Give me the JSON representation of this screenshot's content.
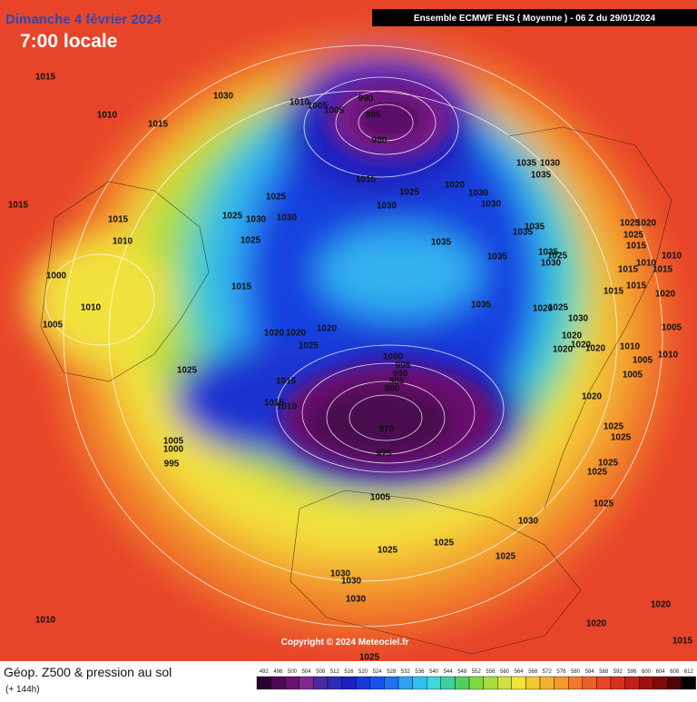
{
  "header": {
    "date": "Dimanche 4 février 2024",
    "time": "7:00 locale",
    "run": "Ensemble ECMWF ENS  ( Moyenne )  -  06 Z du 29/01/2024"
  },
  "footer": {
    "product": "Géop. Z500 & pression au sol",
    "lead": "(+ 144h)",
    "copyright": "Copyright © 2024 Meteociel.fr"
  },
  "scale": {
    "values": [
      492,
      496,
      500,
      504,
      508,
      512,
      516,
      520,
      524,
      528,
      532,
      536,
      540,
      544,
      548,
      552,
      556,
      560,
      564,
      568,
      572,
      576,
      580,
      584,
      588,
      592,
      596,
      600,
      604,
      608,
      612
    ],
    "colors": [
      "#2a0030",
      "#4b0a52",
      "#6a1070",
      "#7e2a8e",
      "#4a2aa0",
      "#2a2ab8",
      "#1e20c0",
      "#1838d8",
      "#1850e8",
      "#2070f0",
      "#30a0f0",
      "#30c0f0",
      "#3cd8d8",
      "#3cd0a0",
      "#50d060",
      "#80d840",
      "#a8dc3c",
      "#d0e040",
      "#f2e23c",
      "#f4c830",
      "#f4b030",
      "#f49828",
      "#f07a2a",
      "#ec6028",
      "#e8442a",
      "#d83020",
      "#c02018",
      "#a01010",
      "#800808",
      "#500404",
      "#000000"
    ]
  },
  "isobar_labels": [
    1015,
    1030,
    1010,
    1015,
    990,
    985,
    980,
    1010,
    1005,
    1005,
    1035,
    1030,
    1035,
    1015,
    1025,
    1020,
    1030,
    1030,
    1030,
    1015,
    1015,
    1010,
    1025,
    1030,
    1030,
    1025,
    1025,
    1035,
    1035,
    1035,
    1035,
    1000,
    1015,
    1035,
    1010,
    1005,
    1020,
    1020,
    1020,
    1025,
    1000,
    995,
    990,
    985,
    980,
    1025,
    1015,
    1015,
    1010,
    970,
    975,
    1005,
    1000,
    995,
    1005,
    1030,
    1025,
    1025,
    1025,
    1030,
    1030,
    1030,
    1010,
    1020,
    1020,
    1015,
    1025,
    1025,
    1025,
    1020,
    1025,
    1015,
    1010,
    1015,
    1010,
    1015,
    1015,
    1015,
    1020,
    1005,
    1010,
    1005,
    1010,
    1005,
    1020,
    1025,
    1025,
    1025,
    1025,
    1030,
    1025,
    1020,
    1020,
    1020,
    1020,
    1035,
    1025,
    1030,
    1020
  ]
}
